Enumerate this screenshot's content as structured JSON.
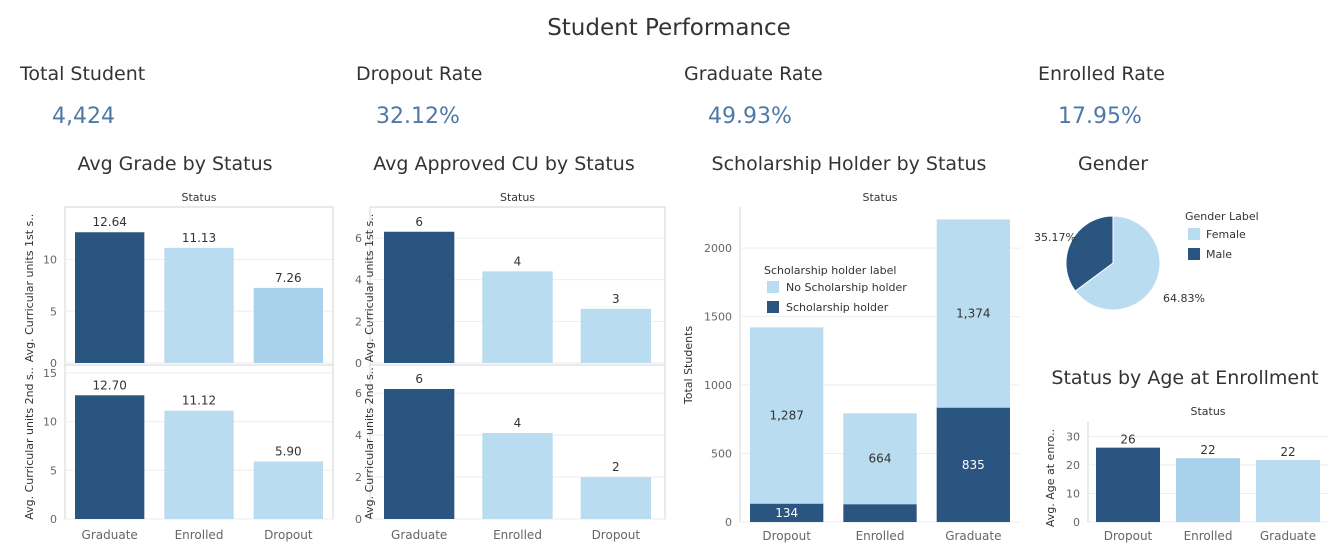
{
  "dashboard": {
    "title": "Student Performance"
  },
  "kpis": [
    {
      "label": "Total Student",
      "value": "4,424"
    },
    {
      "label": "Dropout Rate",
      "value": "32.12%"
    },
    {
      "label": "Graduate Rate",
      "value": "49.93%"
    },
    {
      "label": "Enrolled Rate",
      "value": "17.95%"
    }
  ],
  "colors": {
    "dark": "#2b5581",
    "light": "#b9dcf0",
    "mid": "#a9d1ec",
    "text": "#333333",
    "kpi": "#4e79a7"
  },
  "chart_data": [
    {
      "id": "avg-grade",
      "type": "bar",
      "title": "Avg Grade by Status",
      "column_header": "Status",
      "categories": [
        "Graduate",
        "Enrolled",
        "Dropout"
      ],
      "panels": [
        {
          "ylabel": "Avg. Curricular units 1st s..",
          "values": [
            12.64,
            11.13,
            7.26
          ],
          "labels": [
            "12.64",
            "11.13",
            "7.26"
          ],
          "ylim": [
            0,
            14.5
          ],
          "ticks": [
            0,
            5,
            10
          ]
        },
        {
          "ylabel": "Avg. Curricular units 2nd s..",
          "values": [
            12.7,
            11.12,
            5.9
          ],
          "labels": [
            "12.70",
            "11.12",
            "5.90"
          ],
          "ylim": [
            0,
            15.5
          ],
          "ticks": [
            0,
            5,
            10,
            15
          ]
        }
      ]
    },
    {
      "id": "avg-approved",
      "type": "bar",
      "title": "Avg Approved CU by Status",
      "column_header": "Status",
      "categories": [
        "Graduate",
        "Enrolled",
        "Dropout"
      ],
      "panels": [
        {
          "ylabel": "Avg. Curricular units 1st s..",
          "values": [
            6.3,
            4.4,
            2.6
          ],
          "labels": [
            "6",
            "4",
            "3"
          ],
          "ylim": [
            0,
            7.2
          ],
          "ticks": [
            0,
            2,
            4,
            6
          ]
        },
        {
          "ylabel": "Avg. Curricular units 2nd s..",
          "values": [
            6.2,
            4.1,
            2.0
          ],
          "labels": [
            "6",
            "4",
            "2"
          ],
          "ylim": [
            0,
            7.2
          ],
          "ticks": [
            0,
            2,
            4,
            6
          ]
        }
      ]
    },
    {
      "id": "scholarship",
      "type": "bar",
      "stacked": true,
      "title": "Scholarship Holder by Status",
      "column_header": "Status",
      "ylabel": "Total Students",
      "categories": [
        "Dropout",
        "Enrolled",
        "Graduate"
      ],
      "ylim": [
        0,
        2300
      ],
      "ticks": [
        0,
        500,
        1000,
        1500,
        2000
      ],
      "legend_title": "Scholarship holder label",
      "series": [
        {
          "name": "Scholarship holder",
          "values": [
            134,
            130,
            835
          ],
          "labels": [
            "134",
            "",
            "835"
          ]
        },
        {
          "name": "No Scholarship holder",
          "values": [
            1287,
            664,
            1374
          ],
          "labels": [
            "1,287",
            "664",
            "1,374"
          ]
        }
      ]
    },
    {
      "id": "gender",
      "type": "pie",
      "title": "Gender",
      "legend_title": "Gender Label",
      "slices": [
        {
          "name": "Female",
          "value": 64.83,
          "label": "64.83%"
        },
        {
          "name": "Male",
          "value": 35.17,
          "label": "35.17%"
        }
      ]
    },
    {
      "id": "age",
      "type": "bar",
      "title": "Status by Age at Enrollment",
      "column_header": "Status",
      "ylabel": "Avg. Age at enro..",
      "categories": [
        "Dropout",
        "Enrolled",
        "Graduate"
      ],
      "values": [
        26.1,
        22.4,
        21.8
      ],
      "labels": [
        "26",
        "22",
        "22"
      ],
      "ylim": [
        0,
        33
      ],
      "ticks": [
        0,
        10,
        20,
        30
      ]
    }
  ]
}
